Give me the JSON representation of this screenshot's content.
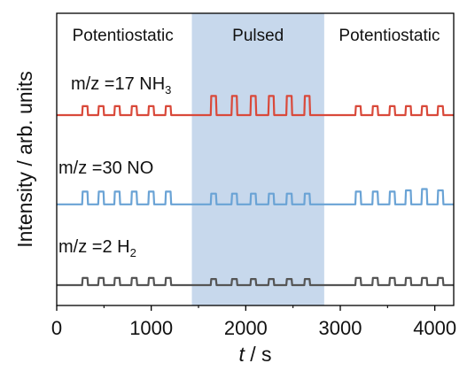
{
  "chart_data": {
    "type": "line",
    "title": "",
    "xlabel_italic": "t",
    "xlabel_rest": " / s",
    "ylabel": "Intensity / arb. units",
    "xlim": [
      0,
      4200
    ],
    "xticks": [
      0,
      1000,
      2000,
      3000,
      4000
    ],
    "yticks_visible": false,
    "grid": false,
    "shaded_region": {
      "x_start": 1430,
      "x_end": 2830,
      "color": "#c7d8ec"
    },
    "sections": [
      {
        "label": "Potentiostatic",
        "x_center": 700
      },
      {
        "label": "Pulsed",
        "x_center": 2130
      },
      {
        "label": "Potentiostatic",
        "x_center": 3520
      }
    ],
    "series": [
      {
        "name": "m/z =17 NH",
        "subscript": "3",
        "color": "#d9493a",
        "baseline": 0.8,
        "peaks": [
          {
            "x": 300,
            "h": 0.35
          },
          {
            "x": 470,
            "h": 0.35
          },
          {
            "x": 640,
            "h": 0.35
          },
          {
            "x": 820,
            "h": 0.35
          },
          {
            "x": 1000,
            "h": 0.35
          },
          {
            "x": 1180,
            "h": 0.35
          },
          {
            "x": 1660,
            "h": 0.75
          },
          {
            "x": 1880,
            "h": 0.75
          },
          {
            "x": 2080,
            "h": 0.75
          },
          {
            "x": 2270,
            "h": 0.75
          },
          {
            "x": 2460,
            "h": 0.75
          },
          {
            "x": 2650,
            "h": 0.75
          },
          {
            "x": 3190,
            "h": 0.35
          },
          {
            "x": 3370,
            "h": 0.35
          },
          {
            "x": 3550,
            "h": 0.35
          },
          {
            "x": 3720,
            "h": 0.35
          },
          {
            "x": 3890,
            "h": 0.35
          },
          {
            "x": 4060,
            "h": 0.35
          }
        ]
      },
      {
        "name": "m/z =30 NO",
        "subscript": "",
        "color": "#6aa3d5",
        "baseline": 0.38,
        "peaks": [
          {
            "x": 300,
            "h": 0.5
          },
          {
            "x": 470,
            "h": 0.5
          },
          {
            "x": 640,
            "h": 0.5
          },
          {
            "x": 820,
            "h": 0.5
          },
          {
            "x": 1000,
            "h": 0.5
          },
          {
            "x": 1180,
            "h": 0.5
          },
          {
            "x": 1660,
            "h": 0.42
          },
          {
            "x": 1880,
            "h": 0.42
          },
          {
            "x": 2080,
            "h": 0.42
          },
          {
            "x": 2270,
            "h": 0.42
          },
          {
            "x": 2460,
            "h": 0.42
          },
          {
            "x": 2650,
            "h": 0.42
          },
          {
            "x": 3190,
            "h": 0.5
          },
          {
            "x": 3370,
            "h": 0.5
          },
          {
            "x": 3550,
            "h": 0.5
          },
          {
            "x": 3720,
            "h": 0.55
          },
          {
            "x": 3890,
            "h": 0.6
          },
          {
            "x": 4060,
            "h": 0.55
          }
        ]
      },
      {
        "name": "m/z =2 H",
        "subscript": "2",
        "color": "#555555",
        "baseline": 0.0,
        "peaks": [
          {
            "x": 300,
            "h": 0.28
          },
          {
            "x": 470,
            "h": 0.28
          },
          {
            "x": 640,
            "h": 0.28
          },
          {
            "x": 820,
            "h": 0.28
          },
          {
            "x": 1000,
            "h": 0.28
          },
          {
            "x": 1180,
            "h": 0.28
          },
          {
            "x": 1660,
            "h": 0.24
          },
          {
            "x": 1880,
            "h": 0.24
          },
          {
            "x": 2080,
            "h": 0.24
          },
          {
            "x": 2270,
            "h": 0.24
          },
          {
            "x": 2460,
            "h": 0.24
          },
          {
            "x": 2650,
            "h": 0.24
          },
          {
            "x": 3190,
            "h": 0.28
          },
          {
            "x": 3370,
            "h": 0.28
          },
          {
            "x": 3550,
            "h": 0.28
          },
          {
            "x": 3720,
            "h": 0.28
          },
          {
            "x": 3890,
            "h": 0.28
          },
          {
            "x": 4060,
            "h": 0.28
          }
        ]
      }
    ]
  }
}
